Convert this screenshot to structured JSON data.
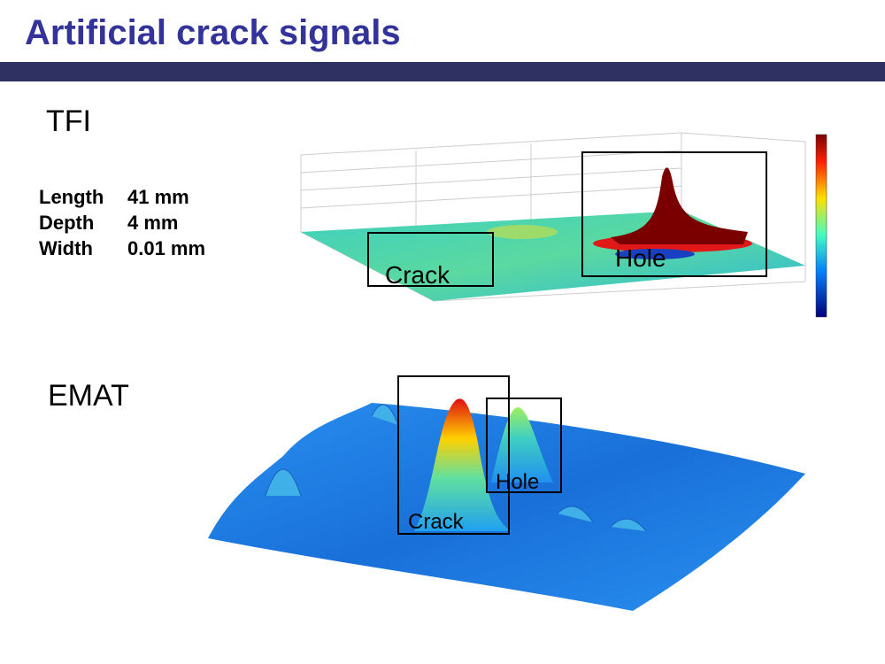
{
  "title": "Artificial crack signals",
  "sections": [
    {
      "label": "TFI",
      "specs": [
        {
          "name": "Length",
          "value": "41 mm"
        },
        {
          "name": "Depth",
          "value": "4 mm"
        },
        {
          "name": "Width",
          "value": "0.01 mm"
        }
      ],
      "annotations": [
        "Crack",
        "Hole"
      ]
    },
    {
      "label": "EMAT",
      "annotations": [
        "Crack",
        "Hole"
      ]
    }
  ]
}
